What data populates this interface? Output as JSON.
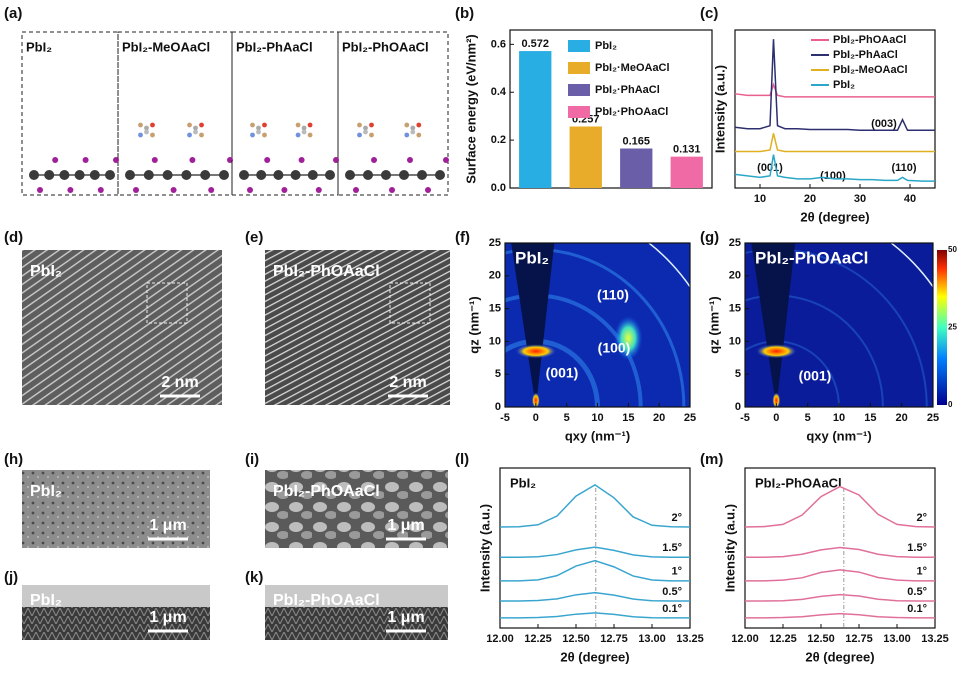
{
  "figure": {
    "panel_labels": [
      "(a)",
      "(b)",
      "(c)",
      "(d)",
      "(e)",
      "(f)",
      "(g)",
      "(h)",
      "(i)",
      "(j)",
      "(k)",
      "(l)",
      "(m)"
    ],
    "structures": [
      "PbI₂",
      "PbI₂-MeOAaCl",
      "PbI₂-PhAaCl",
      "PbI₂-PhOAaCl"
    ],
    "micrographs": [
      {
        "label": "PbI₂",
        "scale_bar": "2 nm"
      },
      {
        "label": "PbI₂-PhOAaCl",
        "scale_bar": "2 nm"
      },
      {
        "label": "PbI₂",
        "scale_bar": "1 μm"
      },
      {
        "label": "PbI₂-PhOAaCl",
        "scale_bar": "1 μm"
      },
      {
        "label": "PbI₂",
        "scale_bar": "1 μm"
      },
      {
        "label": "PbI₂-PhOAaCl",
        "scale_bar": "1 μm"
      }
    ]
  },
  "chart_data": [
    {
      "type": "bar",
      "ylabel": "Surface energy (eV/nm²)",
      "categories": [
        "PbI₂",
        "PbI₂·MeOAaCl",
        "PbI₂·PhAaCl",
        "PbI₂·PhOAaCl"
      ],
      "values": [
        0.572,
        0.257,
        0.165,
        0.131
      ],
      "colors": [
        "#29aee3",
        "#e8ac2a",
        "#6b5ea8",
        "#f06ba6"
      ],
      "ylim": [
        0,
        0.66
      ],
      "yticks": [
        {
          "value": 0,
          "label": "0.0"
        },
        0.2,
        0.4,
        0.6
      ]
    },
    {
      "type": "line",
      "xlabel": "2θ (degree)",
      "ylabel": "Intensity (a.u.)",
      "x": [
        5,
        7.5,
        10,
        12,
        12.7,
        13.5,
        15,
        17.5,
        20,
        22.5,
        25,
        27.5,
        30,
        32.5,
        35,
        37.5,
        38.5,
        39.5,
        42.5,
        45
      ],
      "series": [
        {
          "name": "PbI₂-PhOAaCl",
          "color": "#e9608f",
          "values": [
            6.2,
            6.1,
            6.1,
            6.1,
            6.8,
            6.1,
            6.0,
            6.0,
            6.0,
            6.0,
            6.0,
            6.0,
            6.0,
            6.0,
            6.0,
            6.0,
            6.0,
            6.0,
            6.0,
            6.0
          ]
        },
        {
          "name": "PbI₂-PhAaCl",
          "color": "#2e2f6e",
          "values": [
            4.0,
            3.9,
            3.9,
            4.1,
            9.8,
            4.1,
            3.9,
            3.9,
            3.85,
            3.85,
            3.85,
            3.85,
            3.8,
            3.8,
            3.8,
            3.8,
            4.5,
            3.8,
            3.8,
            3.8
          ]
        },
        {
          "name": "PbI₂-MeOAaCl",
          "color": "#e0b020",
          "values": [
            2.4,
            2.4,
            2.4,
            2.5,
            3.6,
            2.5,
            2.4,
            2.4,
            2.4,
            2.4,
            2.4,
            2.4,
            2.4,
            2.4,
            2.4,
            2.4,
            2.4,
            2.4,
            2.4,
            2.4
          ]
        },
        {
          "name": "PbI₂",
          "color": "#2aa7c8",
          "values": [
            0.9,
            0.8,
            0.7,
            0.8,
            2.2,
            0.8,
            0.7,
            0.6,
            0.6,
            0.7,
            0.6,
            0.6,
            0.55,
            0.55,
            0.5,
            0.5,
            0.7,
            0.5,
            0.45,
            0.45
          ]
        }
      ],
      "xlim": [
        5,
        45
      ],
      "xticks": [
        10,
        20,
        30,
        40
      ],
      "ylim": [
        0,
        10.4
      ],
      "legend": "upper right",
      "annotations": [
        "(003)",
        "(001)",
        "(100)",
        "(110)"
      ]
    },
    {
      "type": "heatmap",
      "label": "PbI₂",
      "xlabel": "qxy (nm⁻¹)",
      "ylabel": "qz (nm⁻¹)",
      "xlim": [
        -5,
        25
      ],
      "xticks": [
        -5,
        0,
        5,
        10,
        15,
        20,
        25
      ],
      "ylim": [
        0,
        25
      ],
      "yticks": [
        0,
        5,
        10,
        15,
        20,
        25
      ],
      "annotations": [
        "(110)",
        "(100)",
        "(001)"
      ]
    },
    {
      "type": "heatmap",
      "label": "PbI₂-PhOAaCl",
      "xlabel": "qxy (nm⁻¹)",
      "ylabel": "qz (nm⁻¹)",
      "xlim": [
        -5,
        25
      ],
      "xticks": [
        -5,
        0,
        5,
        10,
        15,
        20,
        25
      ],
      "ylim": [
        0,
        25
      ],
      "yticks": [
        0,
        5,
        10,
        15,
        20,
        25
      ],
      "annotations": [
        "(001)"
      ],
      "colorbar_lim": [
        0,
        50
      ],
      "colorbar_ticks": [
        0,
        25,
        50
      ]
    },
    {
      "type": "line",
      "label": "PbI₂",
      "xlabel": "2θ (degree)",
      "ylabel": "Intensity (a.u.)",
      "x": [
        12,
        12.125,
        12.25,
        12.375,
        12.5,
        12.625,
        12.75,
        12.875,
        13,
        13.125,
        13.25
      ],
      "series": [
        {
          "name": "2°",
          "color": "#3aa6cf",
          "values": [
            6.0,
            6.01,
            6.13,
            6.65,
            7.83,
            8.5,
            7.73,
            6.6,
            6.1,
            6.01,
            6.0
          ]
        },
        {
          "name": "1.5°",
          "color": "#3aa6cf",
          "values": [
            4.2,
            4.2,
            4.23,
            4.36,
            4.64,
            4.8,
            4.61,
            4.34,
            4.22,
            4.2,
            4.2
          ]
        },
        {
          "name": "1°",
          "color": "#3aa6cf",
          "values": [
            2.8,
            2.8,
            2.86,
            3.11,
            3.68,
            4.0,
            3.63,
            3.09,
            2.85,
            2.8,
            2.8
          ]
        },
        {
          "name": "0.5°",
          "color": "#3aa6cf",
          "values": [
            1.6,
            1.6,
            1.63,
            1.73,
            1.97,
            2.1,
            1.95,
            1.72,
            1.62,
            1.6,
            1.6
          ]
        },
        {
          "name": "0.1°",
          "color": "#3aa6cf",
          "values": [
            0.6,
            0.6,
            0.62,
            0.68,
            0.82,
            0.9,
            0.81,
            0.67,
            0.61,
            0.6,
            0.6
          ]
        }
      ],
      "xlim": [
        12,
        13.25
      ],
      "xticks": [
        {
          "value": 12,
          "label": "12.00"
        },
        12.25,
        {
          "value": 12.5,
          "label": "12.50"
        },
        12.75,
        {
          "value": 13,
          "label": "13.00"
        },
        13.25
      ],
      "ylim": [
        0,
        9.5
      ],
      "reference_x": 12.63
    },
    {
      "type": "line",
      "label": "PbI₂-PhOAaCl",
      "xlabel": "2θ (degree)",
      "ylabel": "Intensity (a.u.)",
      "x": [
        12,
        12.125,
        12.25,
        12.375,
        12.5,
        12.625,
        12.75,
        12.875,
        13,
        13.125,
        13.25
      ],
      "series": [
        {
          "name": "2°",
          "color": "#e0709a",
          "values": [
            6.0,
            6.02,
            6.15,
            6.7,
            7.8,
            8.4,
            7.9,
            6.75,
            6.15,
            6.02,
            6.0
          ]
        },
        {
          "name": "1.5°",
          "color": "#e0709a",
          "values": [
            4.2,
            4.2,
            4.24,
            4.38,
            4.64,
            4.78,
            4.66,
            4.38,
            4.24,
            4.2,
            4.2
          ]
        },
        {
          "name": "1°",
          "color": "#e0709a",
          "values": [
            2.8,
            2.8,
            2.84,
            2.98,
            3.3,
            3.45,
            3.32,
            3.0,
            2.84,
            2.8,
            2.8
          ]
        },
        {
          "name": "0.5°",
          "color": "#e0709a",
          "values": [
            1.6,
            1.6,
            1.62,
            1.7,
            1.88,
            1.98,
            1.9,
            1.71,
            1.62,
            1.6,
            1.6
          ]
        },
        {
          "name": "0.1°",
          "color": "#e0709a",
          "values": [
            0.6,
            0.6,
            0.62,
            0.67,
            0.78,
            0.85,
            0.79,
            0.67,
            0.62,
            0.6,
            0.6
          ]
        }
      ],
      "xlim": [
        12,
        13.25
      ],
      "xticks": [
        {
          "value": 12,
          "label": "12.00"
        },
        12.25,
        {
          "value": 12.5,
          "label": "12.50"
        },
        12.75,
        {
          "value": 13,
          "label": "13.00"
        },
        13.25
      ],
      "ylim": [
        0,
        9.5
      ],
      "reference_x": 12.65
    }
  ]
}
